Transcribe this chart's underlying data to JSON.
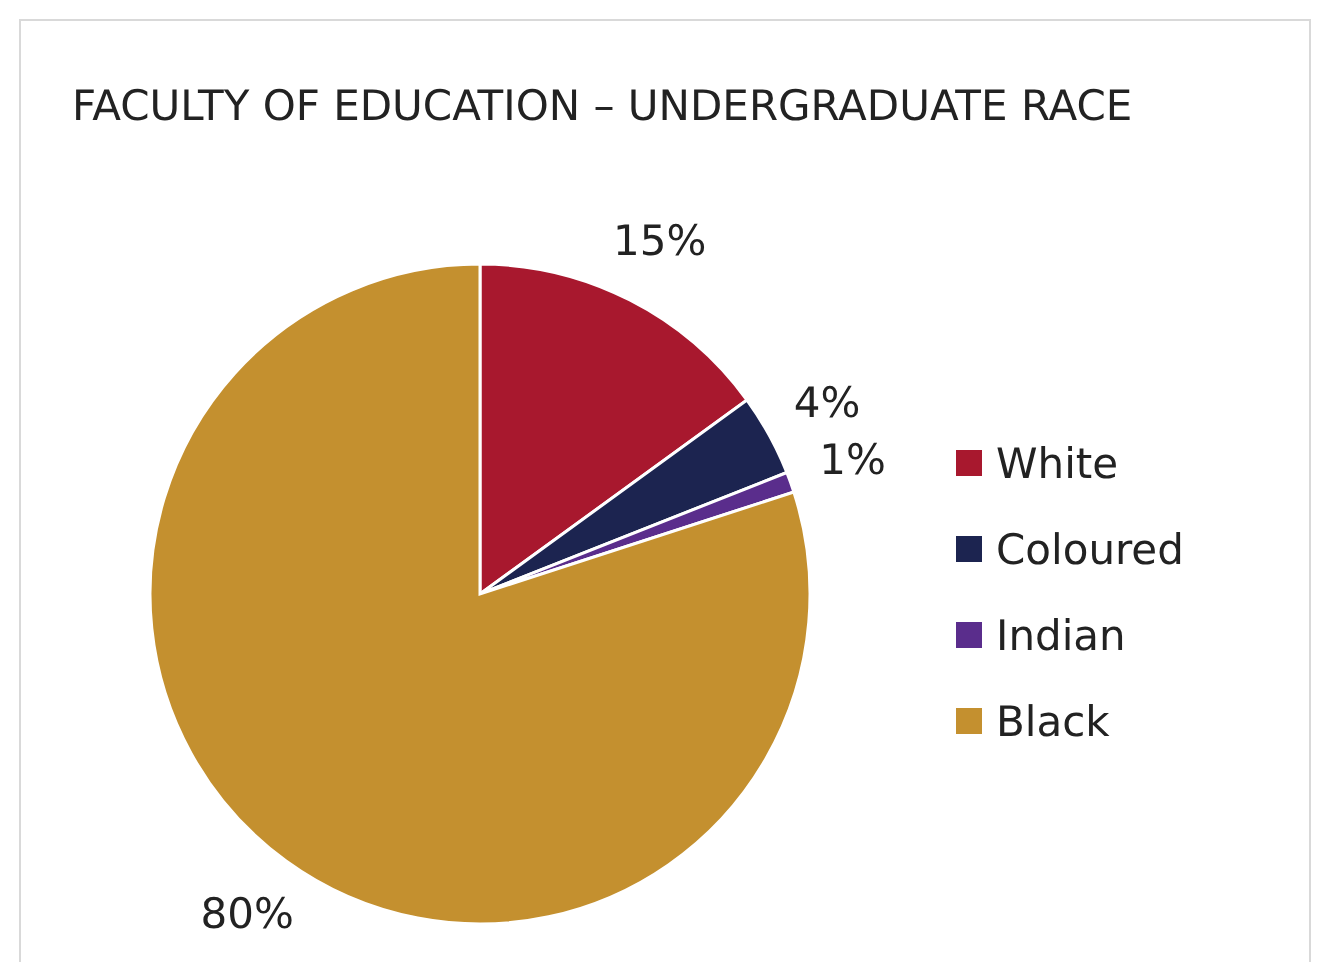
{
  "chart_data": {
    "type": "pie",
    "title": "FACULTY OF EDUCATION – UNDERGRADUATE RACE",
    "categories": [
      "White",
      "Coloured",
      "Indian",
      "Black"
    ],
    "values": [
      15,
      4,
      1,
      80
    ],
    "colors": [
      "#a8182e",
      "#1c2450",
      "#5a2d8c",
      "#c4902f"
    ],
    "value_labels": [
      "15%",
      "4%",
      "1%",
      "80%"
    ],
    "legend": "right"
  }
}
